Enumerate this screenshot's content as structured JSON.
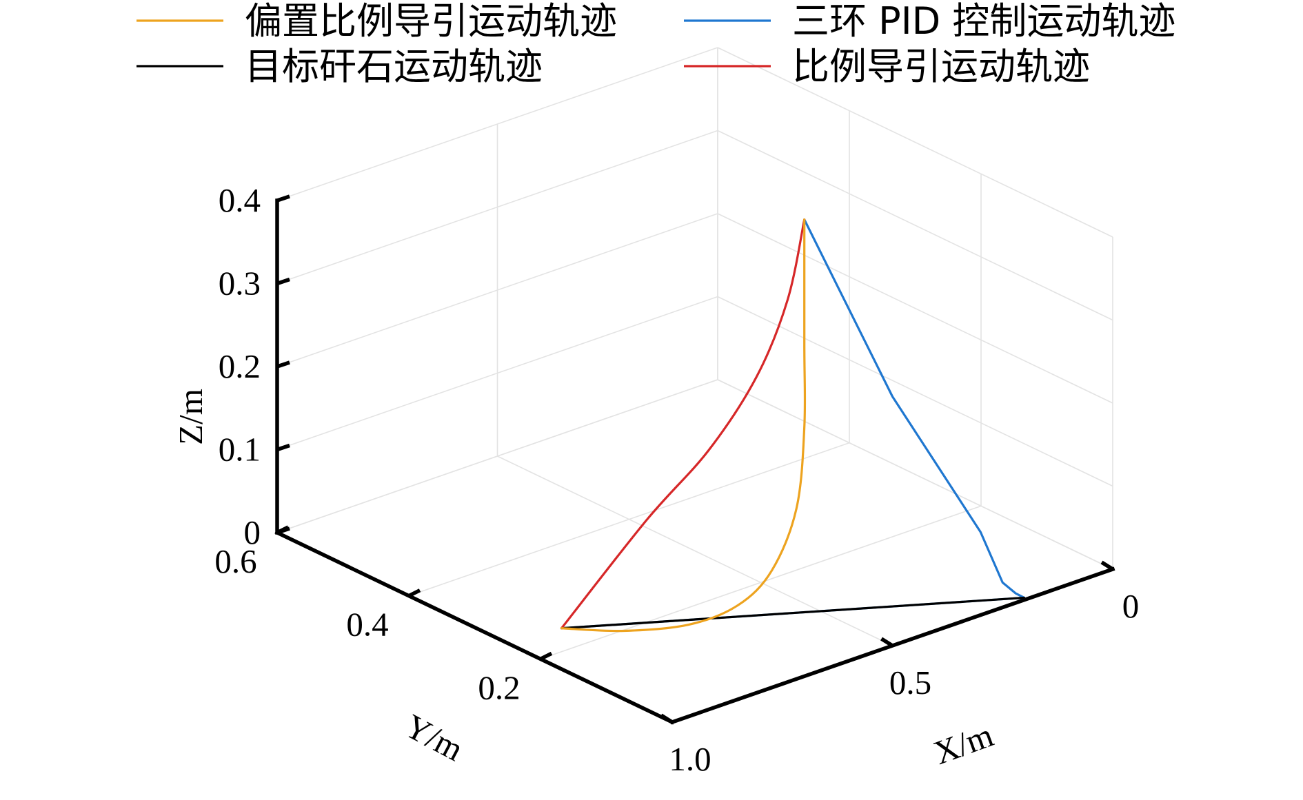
{
  "chart_data": {
    "type": "line",
    "projection": "3d",
    "xlabel": "X/m",
    "ylabel": "Y/m",
    "zlabel": "Z/m",
    "xlim": [
      0,
      1.0
    ],
    "ylim": [
      0,
      0.6
    ],
    "zlim": [
      0,
      0.4
    ],
    "x_ticks": [
      0,
      0.5,
      1.0
    ],
    "x_tick_labels": [
      "0",
      "0.5",
      "1.0"
    ],
    "y_ticks": [
      0.2,
      0.4,
      0.6
    ],
    "y_tick_labels": [
      "0.2",
      "0.4",
      "0.6"
    ],
    "z_ticks": [
      0,
      0.1,
      0.2,
      0.3,
      0.4
    ],
    "z_tick_labels": [
      "0",
      "0.1",
      "0.2",
      "0.3",
      "0.4"
    ],
    "grid": true,
    "legend_position": "top",
    "series": [
      {
        "name": "偏置比例导引运动轨迹",
        "color": "#EDA31F",
        "points": [
          {
            "x": 0.7,
            "y": 0.0,
            "z": 0.55
          },
          {
            "x": 0.7,
            "y": 0.0,
            "z": 0.4
          },
          {
            "x": 0.7,
            "y": 0.0,
            "z": 0.3
          },
          {
            "x": 0.706,
            "y": 0.008,
            "z": 0.2
          },
          {
            "x": 0.726,
            "y": 0.032,
            "z": 0.12
          },
          {
            "x": 0.752,
            "y": 0.066,
            "z": 0.07
          },
          {
            "x": 0.79,
            "y": 0.115,
            "z": 0.035
          },
          {
            "x": 0.84,
            "y": 0.18,
            "z": 0.012
          },
          {
            "x": 0.888,
            "y": 0.243,
            "z": 0.0
          }
        ]
      },
      {
        "name": "三环 PID 控制运动轨迹",
        "color": "#1F77D0",
        "points": [
          {
            "x": 0.7,
            "y": 0.0,
            "z": 0.55
          },
          {
            "x": 0.5,
            "y": 0.0,
            "z": 0.3
          },
          {
            "x": 0.3,
            "y": 0.0,
            "z": 0.1
          },
          {
            "x": 0.25,
            "y": 0.0,
            "z": 0.03
          },
          {
            "x": 0.217,
            "y": 0.002,
            "z": 0.01
          },
          {
            "x": 0.195,
            "y": 0.004,
            "z": 0.0
          },
          {
            "x": 0.888,
            "y": 0.243,
            "z": 0.0
          }
        ]
      },
      {
        "name": "目标矸石运动轨迹",
        "color": "#000000",
        "points": [
          {
            "x": 0.195,
            "y": 0.004,
            "z": 0.0
          },
          {
            "x": 0.888,
            "y": 0.243,
            "z": 0.0
          }
        ]
      },
      {
        "name": "比例导引运动轨迹",
        "color": "#D62728",
        "points": [
          {
            "x": 0.7,
            "y": 0.0,
            "z": 0.55
          },
          {
            "x": 0.714,
            "y": 0.016,
            "z": 0.45
          },
          {
            "x": 0.738,
            "y": 0.047,
            "z": 0.35
          },
          {
            "x": 0.775,
            "y": 0.095,
            "z": 0.25
          },
          {
            "x": 0.823,
            "y": 0.158,
            "z": 0.15
          },
          {
            "x": 0.888,
            "y": 0.243,
            "z": 0.0
          }
        ]
      }
    ]
  }
}
